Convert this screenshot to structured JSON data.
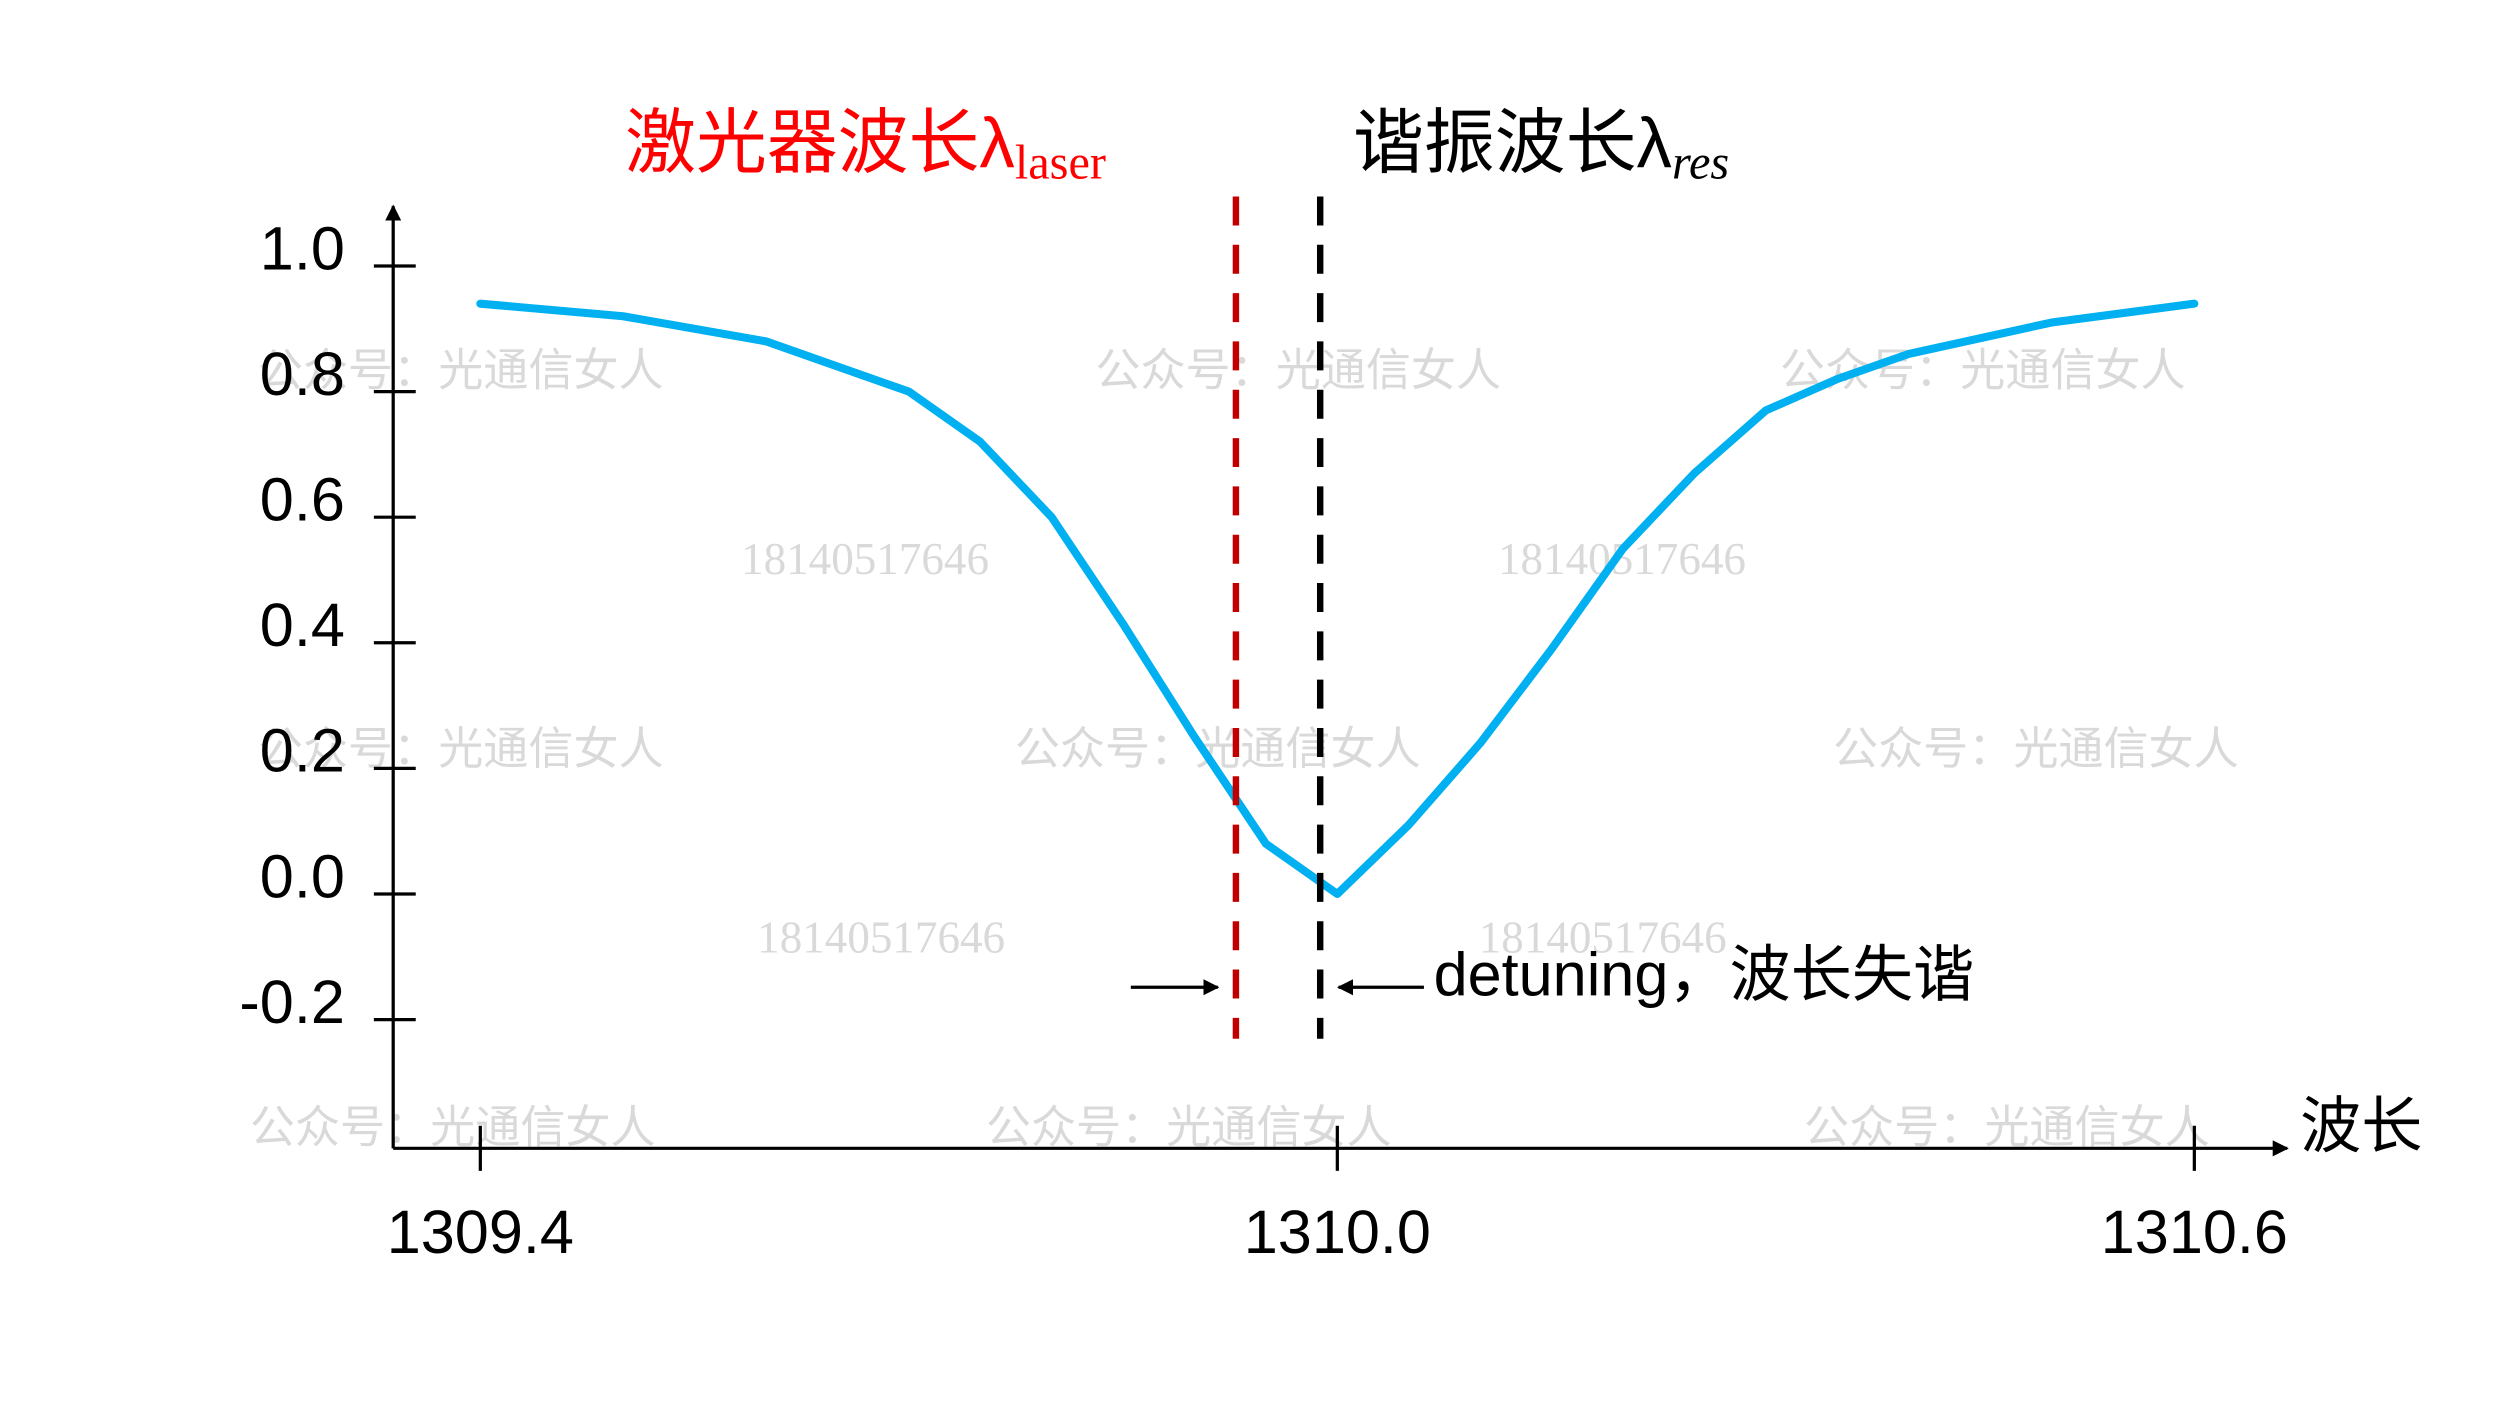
{
  "chart_data": {
    "type": "line",
    "xlabel": "波长",
    "x": [
      1309.4,
      1309.5,
      1309.6,
      1309.7,
      1309.75,
      1309.8,
      1309.85,
      1309.9,
      1309.95,
      1310.0,
      1310.05,
      1310.1,
      1310.15,
      1310.2,
      1310.25,
      1310.3,
      1310.35,
      1310.4,
      1310.5,
      1310.6
    ],
    "series": [
      {
        "color": "#00b0f0",
        "values": [
          0.94,
          0.92,
          0.88,
          0.8,
          0.72,
          0.6,
          0.43,
          0.25,
          0.08,
          0.0,
          0.11,
          0.24,
          0.39,
          0.55,
          0.67,
          0.77,
          0.82,
          0.86,
          0.91,
          0.94
        ]
      }
    ],
    "xlim": [
      1309.339,
      1310.665
    ],
    "xticks": [
      1309.4,
      {
        "value": 1310.0,
        "label": "1310.0"
      },
      1310.6
    ],
    "ylim": [
      -0.405,
      1.103
    ],
    "yticks": [
      -0.2,
      {
        "value": 0,
        "label": "0.0"
      },
      0.2,
      0.4,
      0.6,
      0.8,
      {
        "value": 1,
        "label": "1.0"
      }
    ],
    "markers": [
      {
        "x": 1309.929,
        "color": "#c00000",
        "label": "激光器波长λ",
        "sub": "laser"
      },
      {
        "x": 1309.988,
        "color": "#000000",
        "label": "谐振波长λ",
        "sub": "res"
      }
    ],
    "detuning": "detuning，波长失谐",
    "watermarks": [
      "公众号：光通信女人",
      "18140517646"
    ]
  }
}
